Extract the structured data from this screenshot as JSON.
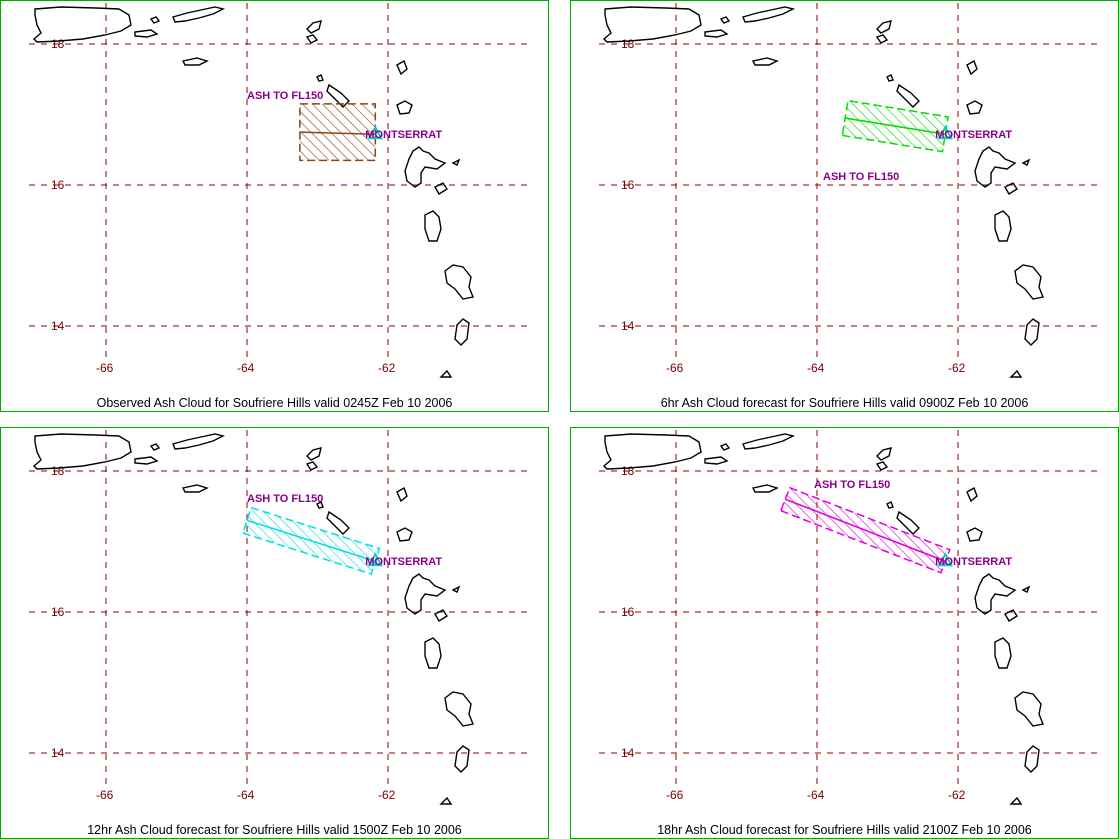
{
  "panels": [
    {
      "caption": "Observed Ash Cloud for Soufriere  Hills valid 0245Z Feb 10 2006",
      "ash_label": "ASH TO FL150",
      "volcano_label": "MONTSERRAT",
      "color": "#8b4513",
      "forecast_hour": 0,
      "plume_tip": {
        "lon": -63.25,
        "lat": 16.75
      },
      "plume_width_deg": 0.8
    },
    {
      "caption": "6hr Ash Cloud forecast for Soufriere  Hills valid 0900Z Feb 10 2006",
      "ash_label": "ASH TO FL150",
      "volcano_label": "MONTSERRAT",
      "color": "#00e000",
      "forecast_hour": 6,
      "plume_tip": {
        "lon": -63.6,
        "lat": 16.95
      },
      "plume_width_deg": 0.5
    },
    {
      "caption": "12hr Ash Cloud forecast for Soufriere  Hills valid 1500Z Feb 10 2006",
      "ash_label": "ASH TO FL150",
      "volcano_label": "MONTSERRAT",
      "color": "#00e0e0",
      "forecast_hour": 12,
      "plume_tip": {
        "lon": -64.0,
        "lat": 17.3
      },
      "plume_width_deg": 0.38
    },
    {
      "caption": "18hr Ash Cloud forecast for Soufriere  Hills valid 2100Z Feb 10 2006",
      "ash_label": "ASH TO FL150",
      "volcano_label": "MONTSERRAT",
      "color": "#e000e0",
      "forecast_hour": 18,
      "plume_tip": {
        "lon": -64.45,
        "lat": 17.6
      },
      "plume_width_deg": 0.35
    }
  ],
  "map": {
    "grid_color": "#8b0000",
    "lat_labels": [
      "18",
      "16",
      "14"
    ],
    "lat_values": [
      18,
      16,
      14
    ],
    "lon_labels": [
      "-66",
      "-64",
      "-62"
    ],
    "lon_values": [
      -66,
      -64,
      -62
    ],
    "volcano": {
      "name": "Soufriere Hills",
      "lon": -62.18,
      "lat": 16.72
    },
    "volcano_marker_color": "#00d0d0"
  }
}
